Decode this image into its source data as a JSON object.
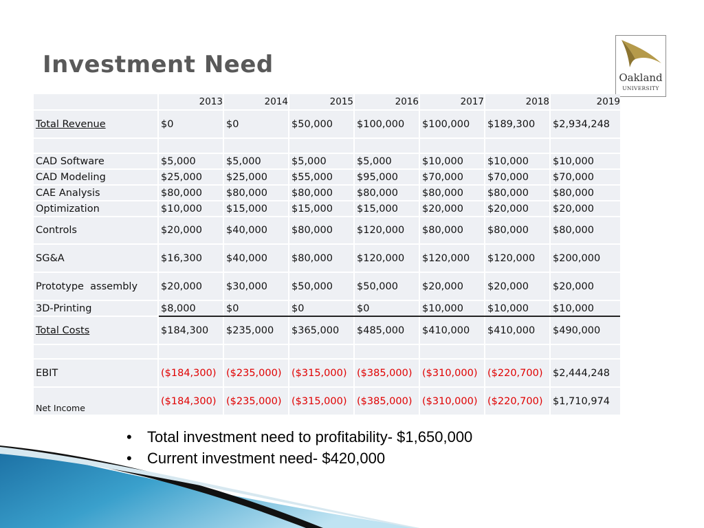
{
  "slide": {
    "title": "Investment Need",
    "logo": {
      "name": "Oakland University",
      "line1": "Oakland",
      "line2": "UNIVERSITY"
    }
  },
  "table": {
    "years": [
      "2013",
      "2014",
      "2015",
      "2016",
      "2017",
      "2018",
      "2019"
    ],
    "rows": {
      "total_revenue": {
        "label": "Total Revenue",
        "values": [
          "$0",
          "$0",
          "$50,000",
          "$100,000",
          "$100,000",
          "$189,300",
          "$2,934,248"
        ]
      },
      "cad_software": {
        "label": "CAD Software",
        "values": [
          "$5,000",
          "$5,000",
          "$5,000",
          "$5,000",
          "$10,000",
          "$10,000",
          "$10,000"
        ]
      },
      "cad_modeling": {
        "label": "CAD Modeling",
        "values": [
          "$25,000",
          "$25,000",
          "$55,000",
          "$95,000",
          "$70,000",
          "$70,000",
          "$70,000"
        ]
      },
      "cae_analysis": {
        "label": "CAE Analysis",
        "values": [
          "$80,000",
          "$80,000",
          "$80,000",
          "$80,000",
          "$80,000",
          "$80,000",
          "$80,000"
        ]
      },
      "optimization": {
        "label": "Optimization",
        "values": [
          "$10,000",
          "$15,000",
          "$15,000",
          "$15,000",
          "$20,000",
          "$20,000",
          "$20,000"
        ]
      },
      "controls": {
        "label": "Controls",
        "values": [
          "$20,000",
          "$40,000",
          "$80,000",
          "$120,000",
          "$80,000",
          "$80,000",
          "$80,000"
        ]
      },
      "sga": {
        "label": "SG&A",
        "values": [
          "$16,300",
          "$40,000",
          "$80,000",
          "$120,000",
          "$120,000",
          "$120,000",
          "$200,000"
        ]
      },
      "prototype_assembly": {
        "label": "Prototype  assembly",
        "values": [
          "$20,000",
          "$30,000",
          "$50,000",
          "$50,000",
          "$20,000",
          "$20,000",
          "$20,000"
        ]
      },
      "printing_3d": {
        "label": "3D-Printing",
        "values": [
          "$8,000",
          "$0",
          "$0",
          "$0",
          "$10,000",
          "$10,000",
          "$10,000"
        ]
      },
      "total_costs": {
        "label": "Total Costs",
        "values": [
          "$184,300",
          "$235,000",
          "$365,000",
          "$485,000",
          "$410,000",
          "$410,000",
          "$490,000"
        ]
      },
      "ebit": {
        "label": "EBIT",
        "values": [
          "($184,300)",
          "($235,000)",
          "($315,000)",
          "($385,000)",
          "($310,000)",
          "($220,700)",
          "$2,444,248"
        ]
      },
      "net_income": {
        "label": "Net Income",
        "values": [
          "($184,300)",
          "($235,000)",
          "($315,000)",
          "($385,000)",
          "($310,000)",
          "($220,700)",
          "$1,710,974"
        ]
      }
    },
    "negative_color": "#e00000",
    "cell_background": "#eef0f4"
  },
  "bullets": [
    "Total investment need to profitability- $1,650,000",
    "Current investment need- $420,000"
  ],
  "colors": {
    "title": "#595959",
    "swoosh_blue": "#3aa0cc",
    "swoosh_dark": "#111111"
  }
}
